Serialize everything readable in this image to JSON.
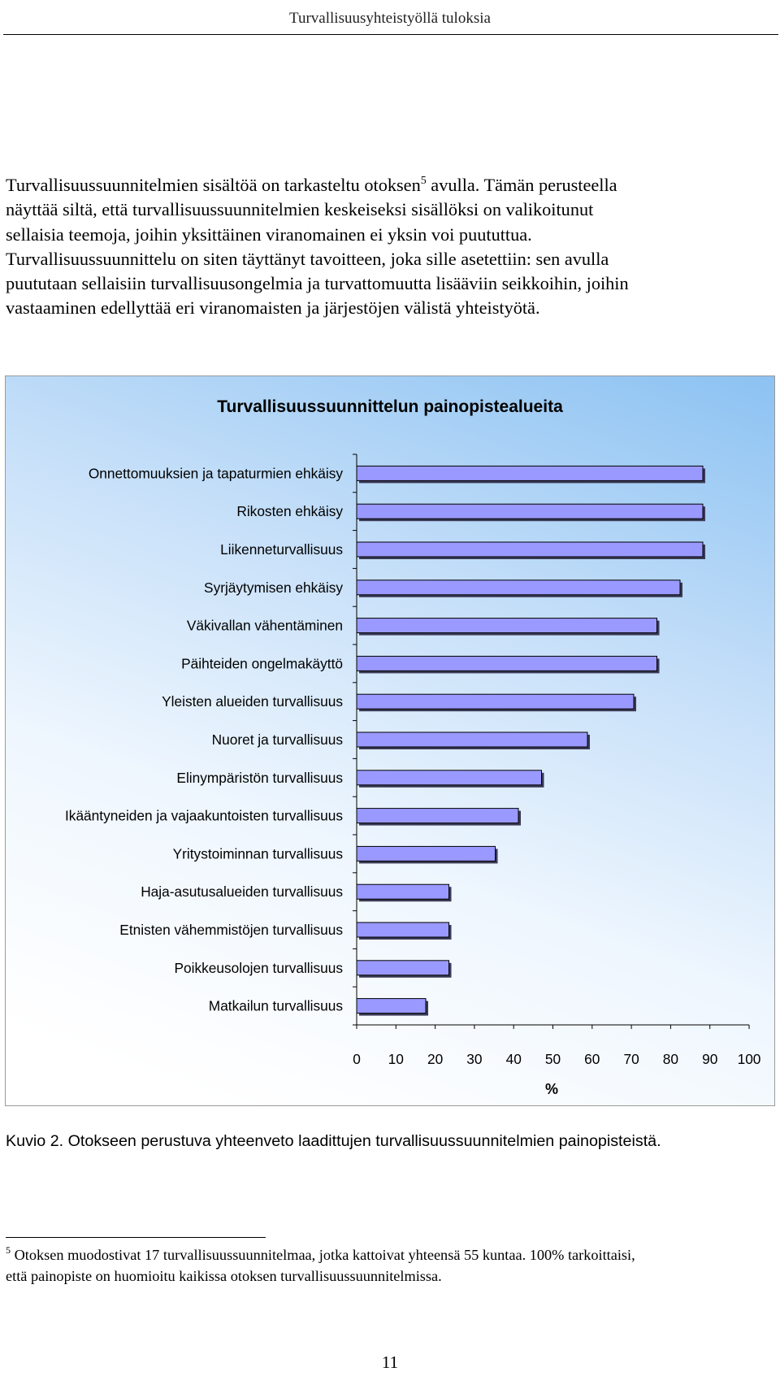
{
  "header": {
    "running_title": "Turvallisuusyhteistyöllä tuloksia"
  },
  "paragraph": {
    "lines": [
      {
        "before": "Turvallisuussuunnitelmien sisältöä on tarkasteltu otoksen",
        "sup": "5",
        "after": " avulla. Tämän perusteella"
      },
      {
        "text": "näyttää siltä, että turvallisuussuunnitelmien keskeiseksi sisällöksi on valikoitunut"
      },
      {
        "text": "sellaisia teemoja, joihin yksittäinen viranomainen ei yksin voi puututtua."
      },
      {
        "text": "Turvallisuussuunnittelu on siten täyttänyt tavoitteen, joka sille asetettiin: sen avulla"
      },
      {
        "text": "puututaan sellaisiin turvallisuusongelmia ja turvattomuutta lisääviin seikkoihin, joihin"
      },
      {
        "text": "vastaaminen edellyttää eri viranomaisten ja järjestöjen välistä yhteistyötä."
      }
    ]
  },
  "chart_data": {
    "type": "bar",
    "orientation": "horizontal",
    "title": "Turvallisuussuunnittelun painopistealueita",
    "xlabel": "%",
    "ylabel": "",
    "xlim": [
      0,
      100
    ],
    "xticks": [
      "0",
      "10",
      "20",
      "30",
      "40",
      "50",
      "60",
      "70",
      "80",
      "90",
      "100"
    ],
    "grid": false,
    "legend": "none",
    "categories": [
      "Onnettomuuksien ja tapaturmien ehkäisy",
      "Rikosten ehkäisy",
      "Liikenneturvallisuus",
      "Syrjäytymisen ehkäisy",
      "Väkivallan vähentäminen",
      "Päihteiden ongelmakäyttö",
      "Yleisten alueiden turvallisuus",
      "Nuoret ja turvallisuus",
      "Elinympäristön turvallisuus",
      "Ikääntyneiden ja vajaakuntoisten turvallisuus",
      "Yritystoiminnan turvallisuus",
      "Haja-asutusalueiden turvallisuus",
      "Etnisten vähemmistöjen turvallisuus",
      "Poikkeusolojen turvallisuus",
      "Matkailun turvallisuus"
    ],
    "values": [
      88.2,
      88.2,
      88.2,
      82.4,
      76.5,
      76.5,
      70.6,
      58.8,
      47.1,
      41.2,
      35.3,
      23.5,
      23.5,
      23.5,
      17.6
    ],
    "colors": {
      "bar_fill": "#9999ff",
      "bar_edge": "#000000",
      "bar_shadow": "#3a3a55",
      "axis": "#000000"
    }
  },
  "caption": {
    "text": "Kuvio 2. Otokseen perustuva yhteenveto laadittujen turvallisuussuunnitelmien painopisteistä."
  },
  "footnote": {
    "mark": "5",
    "line1": " Otoksen muodostivat 17 turvallisuussuunnitelmaa, jotka kattoivat yhteensä 55 kuntaa. 100% tarkoittaisi,",
    "line2": "että painopiste on huomioitu kaikissa otoksen turvallisuussuunnitelmissa."
  },
  "page": {
    "number": "11"
  }
}
